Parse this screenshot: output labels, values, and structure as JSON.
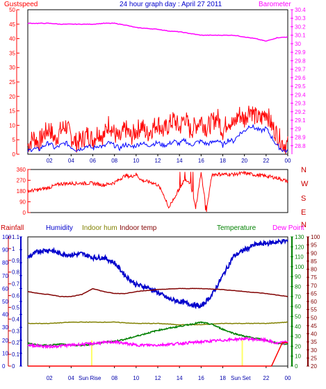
{
  "title": "24 hour graph day : April 27 2011",
  "labels": {
    "gustspeed": "Gustspeed",
    "barometer": "Barometer",
    "rainfall": "Rainfall",
    "humidity": "Humidity",
    "indoor_hum": "Indoor hum",
    "indoor_temp": "Indoor temp",
    "temperature": "Temperature",
    "dew_point": "Dew Point",
    "sun_rise": "Sun Rise",
    "sun_set": "Sun Set",
    "compass": [
      "N",
      "W",
      "S",
      "E",
      "N"
    ]
  },
  "colors": {
    "gust": "#ff0000",
    "avgwind": "#0000ff",
    "barometer": "#ff00ff",
    "direction": "#ff0000",
    "rainfall": "#cc0000",
    "humidity": "#0000cc",
    "indoor_hum": "#808000",
    "indoor_temp": "#800000",
    "temperature": "#008000",
    "dewpoint": "#ff00ff",
    "sun": "#ffff66",
    "rain_line": "#ff0000"
  },
  "chart_data": [
    {
      "type": "line",
      "name": "wind-barometer",
      "x_ticks": [
        "02",
        "04",
        "06",
        "08",
        "10",
        "12",
        "14",
        "16",
        "18",
        "20",
        "22",
        "00"
      ],
      "left_axis": {
        "label": "Gustspeed",
        "ylim": [
          0,
          50
        ],
        "ticks": [
          0,
          5,
          10,
          15,
          20,
          25,
          30,
          35,
          40,
          45,
          50
        ]
      },
      "right_axis": {
        "label": "Barometer",
        "ylim": [
          28.7,
          30.4
        ],
        "ticks": [
          "28.8",
          "28.9",
          "29",
          "29.1",
          "29.2",
          "29.3",
          "29.4",
          "29.5",
          "29.6",
          "29.7",
          "29.8",
          "29.9",
          "30",
          "30.1",
          "30.2",
          "30.3",
          "30.4"
        ]
      },
      "series": [
        {
          "name": "Gustspeed",
          "axis": "left",
          "x": [
            0,
            0.5,
            1,
            1.5,
            2,
            2.5,
            3,
            3.5,
            4,
            4.5,
            5,
            5.5,
            6,
            6.5,
            7,
            7.5,
            8,
            8.5,
            9,
            9.5,
            10,
            10.5,
            11,
            11.5,
            12,
            12.5,
            13,
            13.5,
            14,
            14.5,
            15,
            15.5,
            16,
            16.5,
            17,
            17.5,
            18,
            18.5,
            19,
            19.5,
            20,
            20.5,
            21,
            21.5,
            22,
            22.5,
            23,
            23.5,
            24
          ],
          "values": [
            3,
            6,
            4,
            7,
            9,
            5,
            8,
            10,
            6,
            4,
            5,
            7,
            5,
            8,
            6,
            11,
            7,
            5,
            9,
            6,
            8,
            10,
            7,
            9,
            11,
            8,
            10,
            12,
            9,
            13,
            8,
            10,
            12,
            9,
            11,
            13,
            8,
            12,
            10,
            14,
            12,
            16,
            13,
            12,
            15,
            10,
            7,
            4,
            3
          ]
        },
        {
          "name": "",
          "axis": "left",
          "x": [
            0,
            0.5,
            1,
            1.5,
            2,
            2.5,
            3,
            3.5,
            4,
            4.5,
            5,
            5.5,
            6,
            6.5,
            7,
            7.5,
            8,
            8.5,
            9,
            9.5,
            10,
            10.5,
            11,
            11.5,
            12,
            12.5,
            13,
            13.5,
            14,
            14.5,
            15,
            15.5,
            16,
            16.5,
            17,
            17.5,
            18,
            18.5,
            19,
            19.5,
            20,
            20.5,
            21,
            21.5,
            22,
            22.5,
            23,
            23.5,
            24
          ],
          "values": [
            1,
            2,
            1.5,
            3,
            4,
            2,
            3,
            4,
            2.5,
            1.5,
            2,
            3,
            2,
            3,
            2.5,
            4,
            3,
            2,
            3.5,
            2.5,
            3,
            4,
            3,
            3.5,
            4,
            3,
            3.5,
            4.5,
            3.5,
            5,
            3,
            4,
            4.5,
            3.5,
            4,
            5,
            3,
            5,
            4.5,
            7,
            8,
            10,
            9,
            8,
            9,
            6,
            3,
            1.5,
            1
          ]
        },
        {
          "name": "Barometer",
          "axis": "right",
          "x": [
            0,
            1,
            2,
            3,
            4,
            5,
            6,
            7,
            8,
            9,
            10,
            11,
            12,
            13,
            14,
            15,
            16,
            17,
            18,
            19,
            20,
            21,
            22,
            23,
            24
          ],
          "values": [
            30.24,
            30.24,
            30.24,
            30.23,
            30.23,
            30.23,
            30.23,
            30.24,
            30.24,
            30.22,
            30.19,
            30.18,
            30.17,
            30.15,
            30.14,
            30.12,
            30.1,
            30.1,
            30.1,
            30.1,
            30.08,
            30.06,
            30.03,
            30.07,
            30.08
          ]
        }
      ]
    },
    {
      "type": "scatter",
      "name": "wind-direction",
      "x_ticks": [
        "02",
        "04",
        "06",
        "08",
        "10",
        "12",
        "14",
        "16",
        "18",
        "20",
        "22",
        "00"
      ],
      "ylim": [
        0,
        360
      ],
      "y_ticks": [
        0,
        90,
        180,
        270,
        360
      ],
      "series": [
        {
          "name": "",
          "x": [
            0,
            1,
            2,
            3,
            4,
            5,
            6,
            7,
            8,
            9,
            9.5,
            10,
            10.5,
            11,
            11.5,
            12,
            12.5,
            13,
            13.5,
            14,
            14.5,
            15,
            15.5,
            16,
            16.5,
            17,
            18,
            19,
            20,
            21,
            22,
            23,
            24
          ],
          "values": [
            180,
            190,
            210,
            240,
            245,
            245,
            245,
            230,
            250,
            310,
            300,
            320,
            270,
            260,
            250,
            230,
            160,
            40,
            120,
            200,
            280,
            250,
            40,
            330,
            20,
            320,
            320,
            320,
            330,
            315,
            305,
            290,
            260
          ]
        }
      ]
    },
    {
      "type": "line",
      "name": "humidity-temperature",
      "x_ticks": [
        "02",
        "04",
        "08",
        "10",
        "12",
        "14",
        "16",
        "18",
        "22",
        "00"
      ],
      "markers": [
        "Sun Rise",
        "Sun Set"
      ],
      "axes": {
        "rainfall": {
          "ylim": [
            0,
            1.1
          ],
          "ticks": [
            "0",
            "0.1",
            "0.2",
            "0.3",
            "0.4",
            "0.5",
            "0.6",
            "0.7",
            "0.8",
            "0.9",
            "1",
            "1.1"
          ]
        },
        "humidity": {
          "ylim": [
            0,
            100
          ],
          "ticks": [
            0,
            10,
            20,
            30,
            40,
            50,
            60,
            70,
            80,
            90,
            100
          ]
        },
        "temperature": {
          "ylim": [
            0,
            130
          ],
          "ticks": [
            0,
            10,
            20,
            30,
            40,
            50,
            60,
            70,
            80,
            90,
            100,
            110,
            120,
            130
          ]
        },
        "dewpoint": {
          "ylim": [
            20,
            100
          ],
          "ticks": [
            20,
            25,
            30,
            35,
            40,
            45,
            50,
            55,
            60,
            65,
            70,
            75,
            80,
            85,
            90,
            95,
            100
          ]
        }
      },
      "series": [
        {
          "name": "Humidity",
          "axis": "humidity",
          "x": [
            0,
            1,
            2,
            3,
            4,
            5,
            6,
            7,
            8,
            9,
            10,
            11,
            12,
            13,
            14,
            15,
            16,
            17,
            18,
            19,
            20,
            21,
            22,
            23,
            24
          ],
          "values": [
            84,
            89,
            90,
            87,
            86,
            87,
            84,
            84,
            80,
            70,
            63,
            61,
            57,
            52,
            50,
            48,
            46,
            55,
            70,
            85,
            90,
            94,
            95,
            96,
            97
          ]
        },
        {
          "name": "Indoor hum",
          "axis": "humidity",
          "x": [
            0,
            2,
            4,
            6,
            8,
            10,
            12,
            14,
            16,
            18,
            20,
            22,
            24
          ],
          "values": [
            33,
            33,
            34,
            34,
            34,
            33,
            33,
            32,
            32,
            33,
            33,
            33,
            34
          ]
        },
        {
          "name": "Indoor temp",
          "axis": "temperature",
          "x": [
            0,
            1,
            2,
            3,
            4,
            5,
            6,
            7,
            8,
            9,
            10,
            12,
            14,
            16,
            18,
            20,
            22,
            24
          ],
          "values": [
            75,
            73,
            72,
            70,
            70,
            72,
            78,
            75,
            73,
            73,
            75,
            77,
            78,
            78,
            77,
            75,
            73,
            70
          ]
        },
        {
          "name": "Temperature",
          "axis": "temperature",
          "x": [
            0,
            1,
            2,
            3,
            4,
            5,
            6,
            7,
            8,
            9,
            10,
            12,
            14,
            16,
            17,
            18,
            19,
            20,
            21,
            22,
            23,
            24
          ],
          "values": [
            23,
            21,
            21,
            22,
            21,
            21,
            22,
            24,
            25,
            27,
            30,
            36,
            40,
            44,
            42,
            37,
            33,
            30,
            28,
            26,
            23,
            22
          ]
        },
        {
          "name": "Dew Point",
          "axis": "dewpoint",
          "x": [
            0,
            2,
            4,
            6,
            8,
            10,
            12,
            14,
            16,
            18,
            20,
            22,
            23,
            24
          ],
          "values": [
            33,
            32,
            33,
            34,
            35,
            33,
            33,
            34,
            35,
            36,
            37,
            36,
            34,
            35
          ]
        },
        {
          "name": "Rainfall",
          "axis": "rainfall",
          "x": [
            0,
            22.5,
            23.5,
            24
          ],
          "values": [
            0,
            0,
            0.2,
            0.2
          ]
        }
      ]
    }
  ]
}
